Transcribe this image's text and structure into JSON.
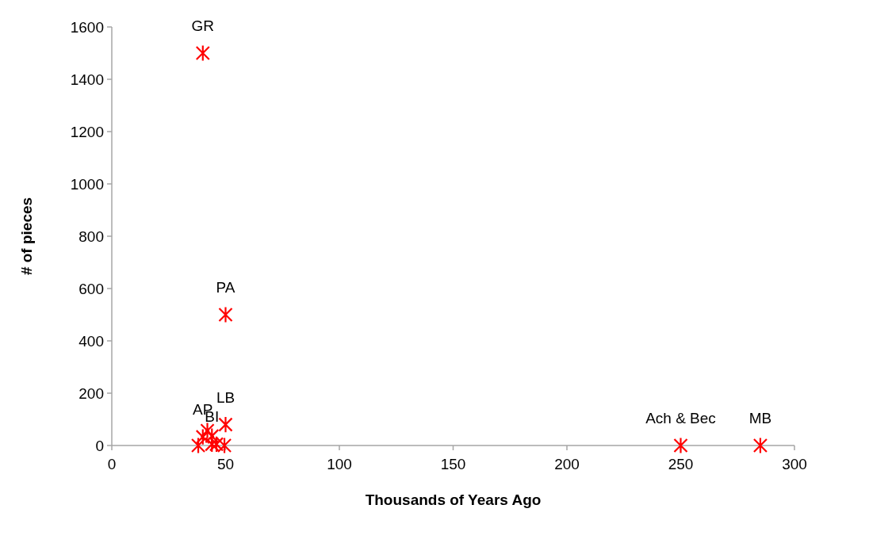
{
  "chart_data": {
    "type": "scatter",
    "xlabel": "Thousands of Years Ago",
    "ylabel": "# of pieces",
    "x": [
      40,
      50,
      50,
      40,
      44,
      44,
      46,
      38,
      42,
      49.5,
      250,
      285
    ],
    "series": [
      {
        "color": "#ff0000",
        "values": [
          1500,
          500,
          80,
          33,
          36,
          5,
          5,
          0,
          57,
          0,
          0,
          0
        ]
      }
    ],
    "xlim": [
      0,
      300
    ],
    "xticks": [
      0,
      50,
      100,
      150,
      200,
      250,
      300
    ],
    "ylim": [
      0,
      1600
    ],
    "yticks": [
      0,
      200,
      400,
      600,
      800,
      1000,
      1200,
      1400,
      1600
    ],
    "grid": false,
    "marker": "cross",
    "annotations": [
      {
        "text": "GR",
        "x": 40,
        "y": 1500
      },
      {
        "text": "PA",
        "x": 50,
        "y": 500
      },
      {
        "text": "LB",
        "x": 50,
        "y": 80
      },
      {
        "text": "AP",
        "x": 40,
        "y": 33
      },
      {
        "text": "BI",
        "x": 44,
        "y": 5
      },
      {
        "text": "Ach & Bec",
        "x": 250,
        "y": 0
      },
      {
        "text": "MB",
        "x": 285,
        "y": 0
      }
    ]
  }
}
